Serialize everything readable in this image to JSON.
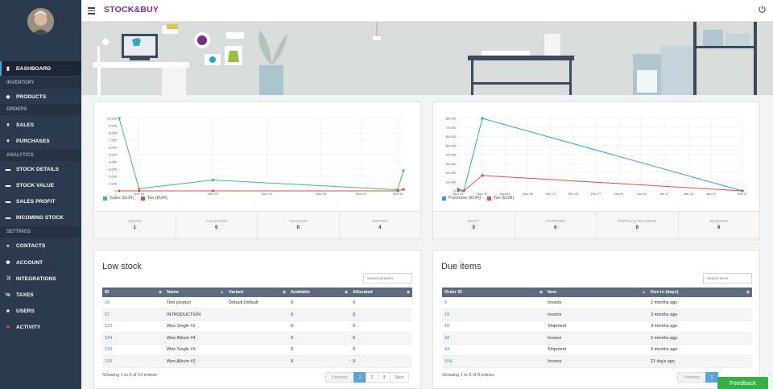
{
  "app": {
    "logo_text": "STOCK&BUY"
  },
  "sidebar": {
    "items": [
      {
        "label": "DASHBOARD",
        "icon": "dashboard-icon"
      },
      {
        "label": "INVENTORY",
        "section": true
      },
      {
        "label": "PRODUCTS",
        "icon": "tag-icon"
      },
      {
        "label": "ORDERS",
        "section": true
      },
      {
        "label": "SALES",
        "icon": "cart-icon"
      },
      {
        "label": "PURCHASES",
        "icon": "cart-icon"
      },
      {
        "label": "ANALYTICS",
        "section": true
      },
      {
        "label": "STOCK DETAILS",
        "icon": "chart-icon"
      },
      {
        "label": "STOCK VALUE",
        "icon": "chart-icon"
      },
      {
        "label": "SALES PROFIT",
        "icon": "chart-icon"
      },
      {
        "label": "INCOMING STOCK",
        "icon": "chart-icon"
      },
      {
        "label": "SETTINGS",
        "section": true
      },
      {
        "label": "CONTACTS",
        "icon": "users-icon"
      },
      {
        "label": "ACCOUNT",
        "icon": "gears-icon"
      },
      {
        "label": "INTEGRATIONS",
        "icon": "shuffle-icon"
      },
      {
        "label": "TAXES",
        "icon": "percent-icon"
      },
      {
        "label": "USERS",
        "icon": "user-icon"
      },
      {
        "label": "ACTIVITY",
        "icon": "activity-icon"
      }
    ]
  },
  "colors": {
    "sales": "#3fbf6f",
    "tax": "#e0503a",
    "purchase": "#2aa3d6",
    "sidebar": "#2b3a4e"
  },
  "sales_chart": {
    "chart_data": {
      "type": "line",
      "x": [
        "Nov 15",
        "Nov 16",
        "Nov 22",
        "Dec 20",
        "Dec 23"
      ],
      "x_ticks": [
        "Nov 15",
        "Nov 22",
        "Nov 29",
        "Dec 06",
        "Dec 13",
        "Dec 20"
      ],
      "y_ticks": [
        "10,000",
        "9,000",
        "8,000",
        "7,000",
        "6,000",
        "5,000",
        "4,000",
        "3,000",
        "2,000",
        "1,000",
        "0"
      ],
      "ylim": [
        0,
        10000
      ],
      "series": [
        {
          "name": "Sales (EUR)",
          "values": [
            10000,
            300,
            1500,
            150,
            2800
          ]
        },
        {
          "name": "Tax (EUR)",
          "values": [
            0,
            0,
            0,
            0,
            200
          ]
        }
      ]
    },
    "stats": [
      {
        "label": "QUOTE",
        "value": "1"
      },
      {
        "label": "ALLOCATED",
        "value": "0"
      },
      {
        "label": "INVOICED",
        "value": "0"
      },
      {
        "label": "SHIPPED",
        "value": "4"
      }
    ]
  },
  "purchase_chart": {
    "chart_data": {
      "type": "line",
      "x": [
        "Nov 15",
        "Nov 17",
        "Nov 22",
        "Nov 23",
        "Feb 07"
      ],
      "x_ticks": [
        "Nov 15",
        "Nov 22",
        "Nov 29",
        "Dec 06",
        "Dec 13",
        "Dec 20",
        "Dec 27",
        "Jan 03",
        "Jan 10",
        "Jan 17",
        "Jan 24",
        "Jan 31",
        "Feb 07"
      ],
      "y_ticks": [
        "80,000",
        "70,000",
        "60,000",
        "50,000",
        "40,000",
        "30,000",
        "20,000",
        "10,000",
        "0"
      ],
      "ylim": [
        0,
        80000
      ],
      "series": [
        {
          "name": "Purchase (EUR)",
          "values": [
            2000,
            0,
            80000,
            80000,
            0
          ]
        },
        {
          "name": "Tax (EUR)",
          "values": [
            0,
            0,
            17000,
            17000,
            0
          ]
        }
      ]
    },
    "stats": [
      {
        "label": "DRAFT",
        "value": "0"
      },
      {
        "label": "APPROVED",
        "value": "0"
      },
      {
        "label": "PARTIALLY RECEIVED",
        "value": "0"
      },
      {
        "label": "RECEIVED",
        "value": "6"
      }
    ]
  },
  "low_stock": {
    "title": "Low stock",
    "search_placeholder": "Search products",
    "columns": [
      "ID",
      "Name",
      "Variant",
      "Available",
      "Allocated"
    ],
    "rows": [
      [
        "29",
        "Test product",
        "Default,Default",
        "0",
        "0"
      ],
      [
        "57",
        "INTRODUCTION",
        "",
        "0",
        "0"
      ],
      [
        "123",
        "Woo Single #2",
        "",
        "0",
        "0"
      ],
      [
        "124",
        "Woo Album #4",
        "",
        "0",
        "0"
      ],
      [
        "126",
        "Woo Single #1",
        "",
        "0",
        "0"
      ],
      [
        "126",
        "Woo Album #3",
        "",
        "0",
        "0"
      ]
    ],
    "showing": "Showing 1 to 6 of 14 entries",
    "pager": [
      "Previous",
      "1",
      "2",
      "3",
      "Next"
    ]
  },
  "due_items": {
    "title": "Due items",
    "search_placeholder": "Search items",
    "columns": [
      "Order ID",
      "Item",
      "Due in (days)"
    ],
    "rows": [
      [
        "5",
        "Invoice",
        "2 months ago"
      ],
      [
        "19",
        "Invoice",
        "3 months ago"
      ],
      [
        "19",
        "Shipment",
        "3 months ago"
      ],
      [
        "43",
        "Invoice",
        "2 months ago"
      ],
      [
        "43",
        "Shipment",
        "3 months ago"
      ],
      [
        "104",
        "Invoice",
        "21 days ago"
      ]
    ],
    "showing": "Showing 1 to 6 of 8 entries",
    "pager": [
      "Previous",
      "1"
    ]
  },
  "feedback": {
    "label": "Feedback"
  }
}
